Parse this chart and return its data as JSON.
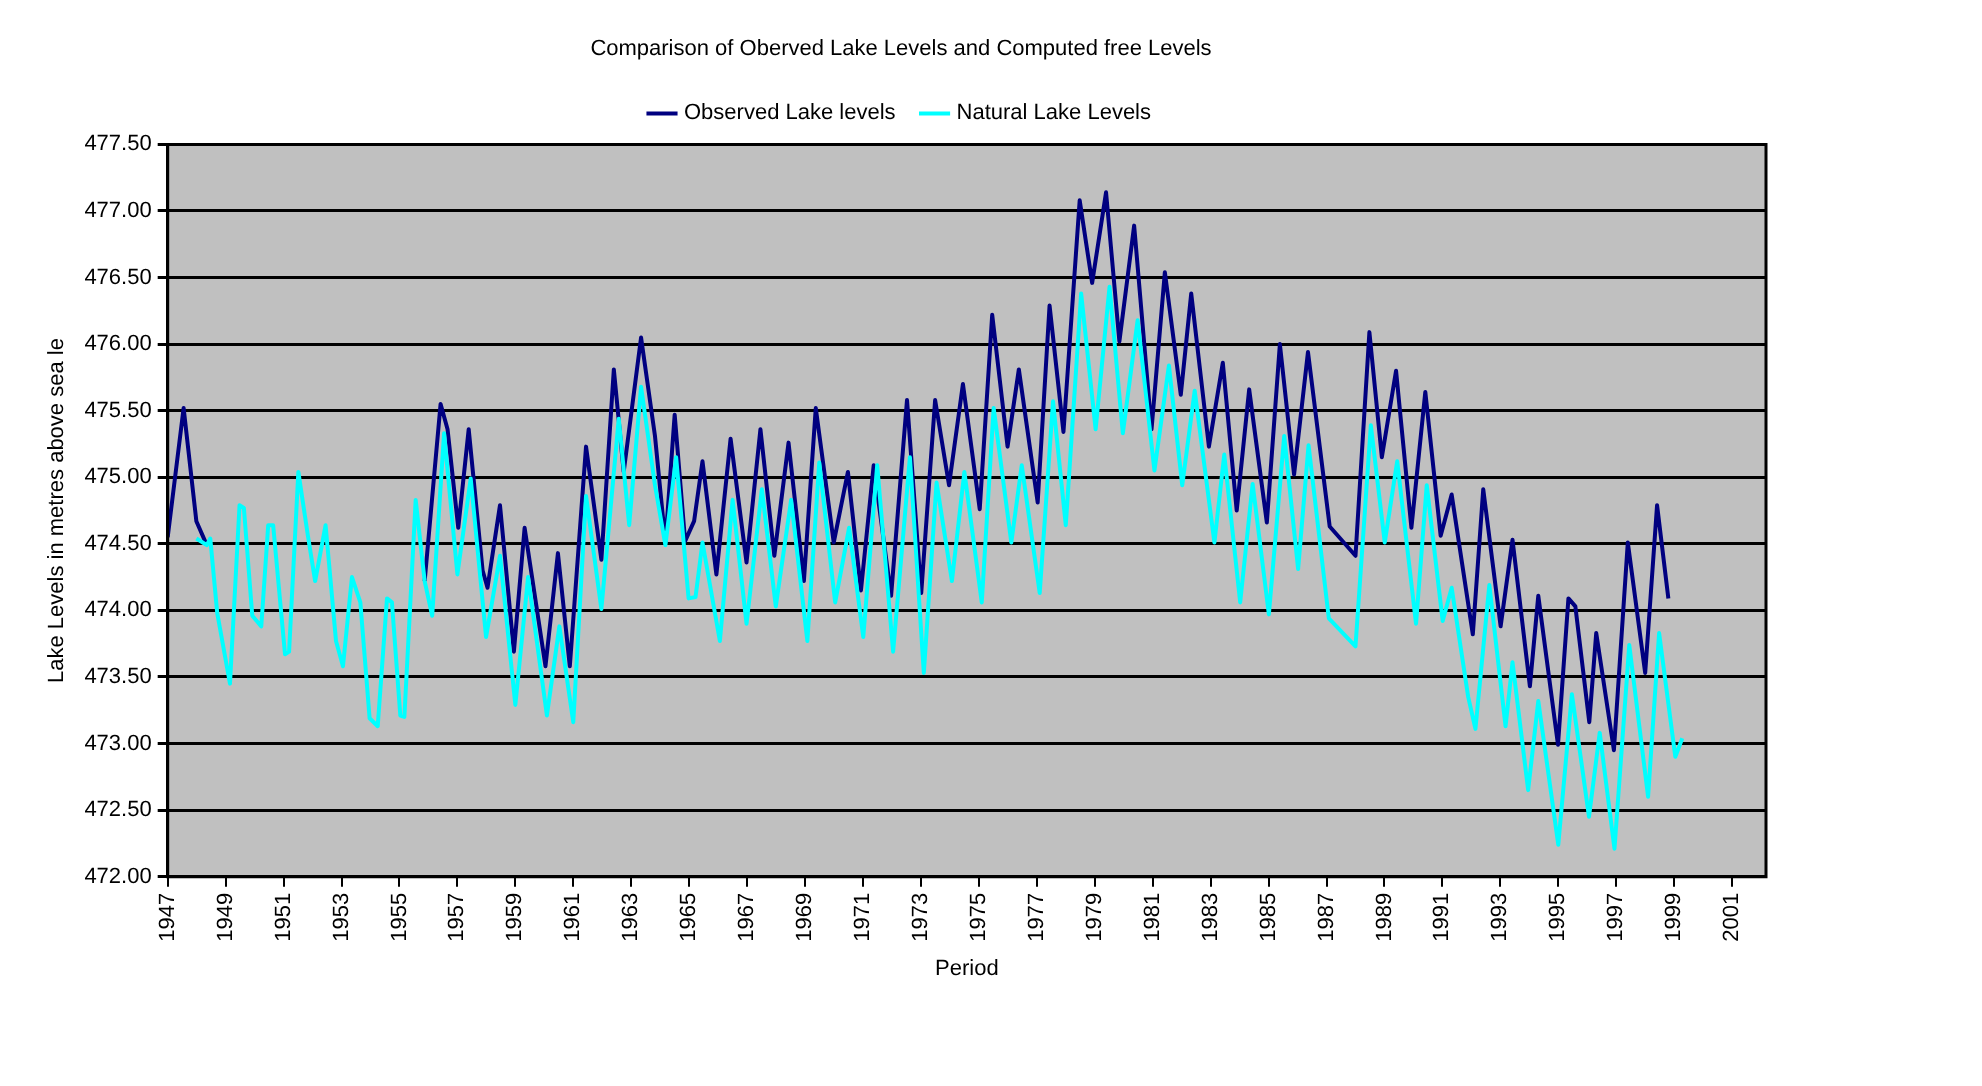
{
  "chart_data": {
    "type": "line",
    "title": "Comparison of Oberved Lake Levels and Computed free Levels",
    "xlabel": "Period",
    "ylabel": "Lake Levels in metres above sea le",
    "xlim": [
      1947,
      2002.17
    ],
    "xticks": [
      1947,
      1949,
      1951,
      1953,
      1955,
      1957,
      1959,
      1961,
      1963,
      1965,
      1967,
      1969,
      1971,
      1973,
      1975,
      1977,
      1979,
      1981,
      1983,
      1985,
      1987,
      1989,
      1991,
      1993,
      1995,
      1997,
      1999,
      2001
    ],
    "ylim": [
      472,
      477.5
    ],
    "yticks": [
      {
        "value": 472,
        "label": "472.00"
      },
      {
        "value": 472.5,
        "label": "472.50"
      },
      {
        "value": 473,
        "label": "473.00"
      },
      {
        "value": 473.5,
        "label": "473.50"
      },
      {
        "value": 474,
        "label": "474.00"
      },
      {
        "value": 474.5,
        "label": "474.50"
      },
      {
        "value": 475,
        "label": "475.00"
      },
      {
        "value": 475.5,
        "label": "475.50"
      },
      {
        "value": 476,
        "label": "476.00"
      },
      {
        "value": 476.5,
        "label": "476.50"
      },
      {
        "value": 477,
        "label": "477.00"
      },
      {
        "value": 477.5,
        "label": "477.50"
      }
    ],
    "grid": "y",
    "legend": "top",
    "marker": "none",
    "line_style": "solid",
    "series": [
      {
        "name": "Observed Lake levels",
        "color": "#000080",
        "x": [
          1947.0,
          1947.55,
          1947.99,
          1948.35,
          1948.47,
          1948.71,
          1949.15,
          1949.48,
          1949.63,
          1949.92,
          1950.23,
          1950.47,
          1950.64,
          1951.05,
          1951.19,
          1951.51,
          1951.84,
          1952.09,
          1952.45,
          1952.81,
          1953.05,
          1953.36,
          1953.65,
          1953.97,
          1954.25,
          1954.57,
          1954.74,
          1955.03,
          1955.17,
          1955.56,
          1955.87,
          1956.42,
          1956.66,
          1957.03,
          1957.39,
          1957.87,
          1958.04,
          1958.47,
          1958.95,
          1959.32,
          1960.04,
          1960.47,
          1960.88,
          1961.44,
          1961.97,
          1962.4,
          1962.74,
          1963.34,
          1963.82,
          1964.18,
          1964.5,
          1964.86,
          1965.17,
          1965.46,
          1965.94,
          1966.43,
          1966.98,
          1967.46,
          1967.94,
          1968.43,
          1968.96,
          1969.37,
          1969.99,
          1970.48,
          1970.93,
          1971.37,
          1971.97,
          1972.52,
          1973.01,
          1973.49,
          1973.97,
          1974.45,
          1975.03,
          1975.46,
          1975.99,
          1976.38,
          1977.03,
          1977.44,
          1977.92,
          1978.48,
          1978.91,
          1979.39,
          1979.85,
          1980.36,
          1980.96,
          1981.42,
          1981.97,
          1982.33,
          1982.94,
          1983.42,
          1983.9,
          1984.33,
          1984.94,
          1985.39,
          1985.88,
          1986.36,
          1987.11,
          1988.0,
          1988.48,
          1988.91,
          1989.4,
          1989.93,
          1990.41,
          1990.94,
          1991.32,
          1992.05,
          1992.41,
          1993.01,
          1993.42,
          1994.02,
          1994.31,
          1994.99,
          1995.35,
          1995.59,
          1996.07,
          1996.31,
          1996.92,
          1997.4,
          1998.0,
          1998.41,
          1998.8
        ],
        "values": [
          474.55,
          475.52,
          474.67,
          474.49,
          null,
          null,
          null,
          null,
          null,
          null,
          null,
          null,
          null,
          null,
          null,
          null,
          null,
          null,
          null,
          null,
          null,
          null,
          null,
          null,
          null,
          null,
          null,
          null,
          null,
          null,
          474.22,
          475.55,
          475.36,
          474.62,
          475.36,
          474.3,
          474.17,
          474.79,
          473.69,
          474.62,
          473.58,
          474.43,
          473.58,
          475.23,
          474.38,
          475.81,
          475.04,
          476.05,
          475.31,
          474.51,
          475.47,
          474.52,
          474.67,
          475.12,
          474.27,
          475.29,
          474.36,
          475.36,
          474.41,
          475.26,
          474.22,
          475.52,
          474.51,
          475.04,
          474.15,
          475.09,
          474.11,
          475.58,
          474.13,
          475.58,
          474.94,
          475.7,
          474.76,
          476.22,
          475.23,
          475.81,
          474.81,
          476.29,
          475.34,
          477.08,
          476.46,
          477.14,
          476.02,
          476.89,
          475.36,
          476.54,
          475.62,
          476.38,
          475.23,
          475.86,
          474.75,
          475.66,
          474.66,
          476.0,
          475.02,
          475.94,
          474.63,
          474.41,
          476.09,
          475.15,
          475.8,
          474.62,
          475.64,
          474.56,
          474.87,
          473.82,
          474.91,
          473.88,
          474.53,
          473.43,
          474.11,
          472.99,
          474.09,
          474.03,
          473.16,
          473.83,
          472.95,
          474.51,
          473.53,
          474.79,
          474.09
        ]
      },
      {
        "name": "Natural Lake Levels",
        "color": "#00ffff",
        "x": [
          1947.99,
          1948.35,
          1948.47,
          1948.71,
          1949.15,
          1949.48,
          1949.63,
          1949.92,
          1950.23,
          1950.47,
          1950.64,
          1951.05,
          1951.19,
          1951.51,
          1951.84,
          1952.09,
          1952.45,
          1952.81,
          1953.05,
          1953.36,
          1953.65,
          1953.97,
          1954.25,
          1954.57,
          1954.74,
          1955.03,
          1955.17,
          1955.56,
          1955.87,
          1956.13,
          1956.54,
          1957.0,
          1957.46,
          1957.99,
          1958.47,
          1959.0,
          1959.44,
          1960.09,
          1960.52,
          1961.0,
          1961.44,
          1961.97,
          1962.57,
          1962.93,
          1963.34,
          1963.82,
          1964.18,
          1964.55,
          1964.98,
          1965.22,
          1965.46,
          1966.06,
          1966.5,
          1966.98,
          1967.51,
          1967.99,
          1968.52,
          1969.08,
          1969.49,
          1970.04,
          1970.52,
          1971.01,
          1971.49,
          1972.04,
          1972.62,
          1973.1,
          1973.54,
          1974.07,
          1974.5,
          1975.1,
          1975.51,
          1976.12,
          1976.48,
          1977.1,
          1977.56,
          1978.0,
          1978.53,
          1979.03,
          1979.51,
          1979.97,
          1980.48,
          1981.06,
          1981.56,
          1982.02,
          1982.45,
          1983.13,
          1983.47,
          1984.02,
          1984.45,
          1985.01,
          1985.54,
          1986.02,
          1986.38,
          1987.08,
          1988.0,
          1988.53,
          1989.01,
          1989.44,
          1990.09,
          1990.46,
          1991.01,
          1991.32,
          1991.89,
          1992.14,
          1992.62,
          1993.18,
          1993.42,
          1993.96,
          1994.31,
          1995.0,
          1995.47,
          1996.06,
          1996.43,
          1996.94,
          1997.45,
          1998.1,
          1998.48,
          1999.04,
          1999.28
        ],
        "values": [
          474.54,
          474.49,
          474.54,
          473.98,
          473.45,
          474.79,
          474.77,
          473.96,
          473.88,
          474.64,
          474.64,
          473.67,
          473.69,
          475.04,
          474.56,
          474.22,
          474.64,
          473.77,
          473.58,
          474.25,
          474.06,
          473.19,
          473.13,
          474.09,
          474.06,
          473.21,
          473.2,
          474.83,
          474.22,
          473.96,
          475.33,
          474.27,
          474.99,
          473.8,
          474.41,
          473.29,
          474.25,
          473.21,
          473.88,
          473.16,
          474.86,
          474.01,
          475.44,
          474.64,
          475.68,
          474.94,
          474.49,
          475.15,
          474.09,
          474.1,
          474.51,
          473.77,
          474.83,
          473.9,
          474.91,
          474.03,
          474.83,
          473.77,
          475.11,
          474.06,
          474.62,
          473.8,
          475.09,
          473.69,
          475.15,
          473.53,
          474.96,
          474.22,
          475.04,
          474.06,
          475.52,
          474.51,
          475.09,
          474.13,
          475.57,
          474.64,
          476.38,
          475.36,
          476.43,
          475.33,
          476.18,
          475.05,
          475.84,
          474.94,
          475.65,
          474.51,
          475.17,
          474.06,
          474.95,
          473.97,
          475.31,
          474.31,
          475.24,
          473.94,
          473.73,
          475.39,
          474.51,
          475.12,
          473.9,
          474.94,
          473.92,
          474.17,
          473.35,
          473.11,
          474.19,
          473.13,
          473.61,
          472.65,
          473.32,
          472.24,
          473.37,
          472.45,
          473.08,
          472.21,
          473.74,
          472.6,
          473.83,
          472.9,
          473.04
        ]
      }
    ]
  }
}
